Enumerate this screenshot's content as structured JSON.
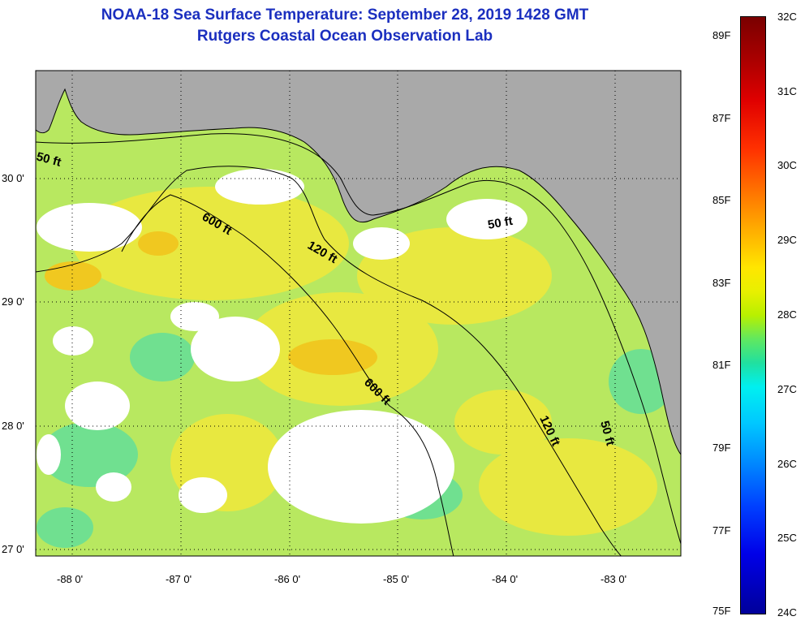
{
  "title": {
    "line1": "NOAA-18 Sea Surface Temperature:  September 28, 2019 1428 GMT",
    "line2": "Rutgers Coastal Ocean Observation Lab"
  },
  "map": {
    "lat_labels": [
      "30 0'",
      "29 0'",
      "28 0'",
      "27 0'"
    ],
    "lon_labels": [
      "-88 0'",
      "-87 0'",
      "-86 0'",
      "-85 0'",
      "-84 0'",
      "-83 0'"
    ],
    "contour_labels": [
      "50 ft",
      "600 ft",
      "120 ft",
      "50 ft",
      "600 ft",
      "120 ft",
      "50 ft"
    ],
    "colors": {
      "land": "#a9a9a9",
      "cloud": "#ffffff",
      "water_warm": "#e8e840",
      "water_mid": "#b8e860"
    }
  },
  "colorbar": {
    "fahrenheit": [
      "89F",
      "87F",
      "85F",
      "83F",
      "81F",
      "79F",
      "77F",
      "75F"
    ],
    "celsius": [
      "32C",
      "31C",
      "30C",
      "29C",
      "28C",
      "27C",
      "26C",
      "25C",
      "24C"
    ]
  }
}
